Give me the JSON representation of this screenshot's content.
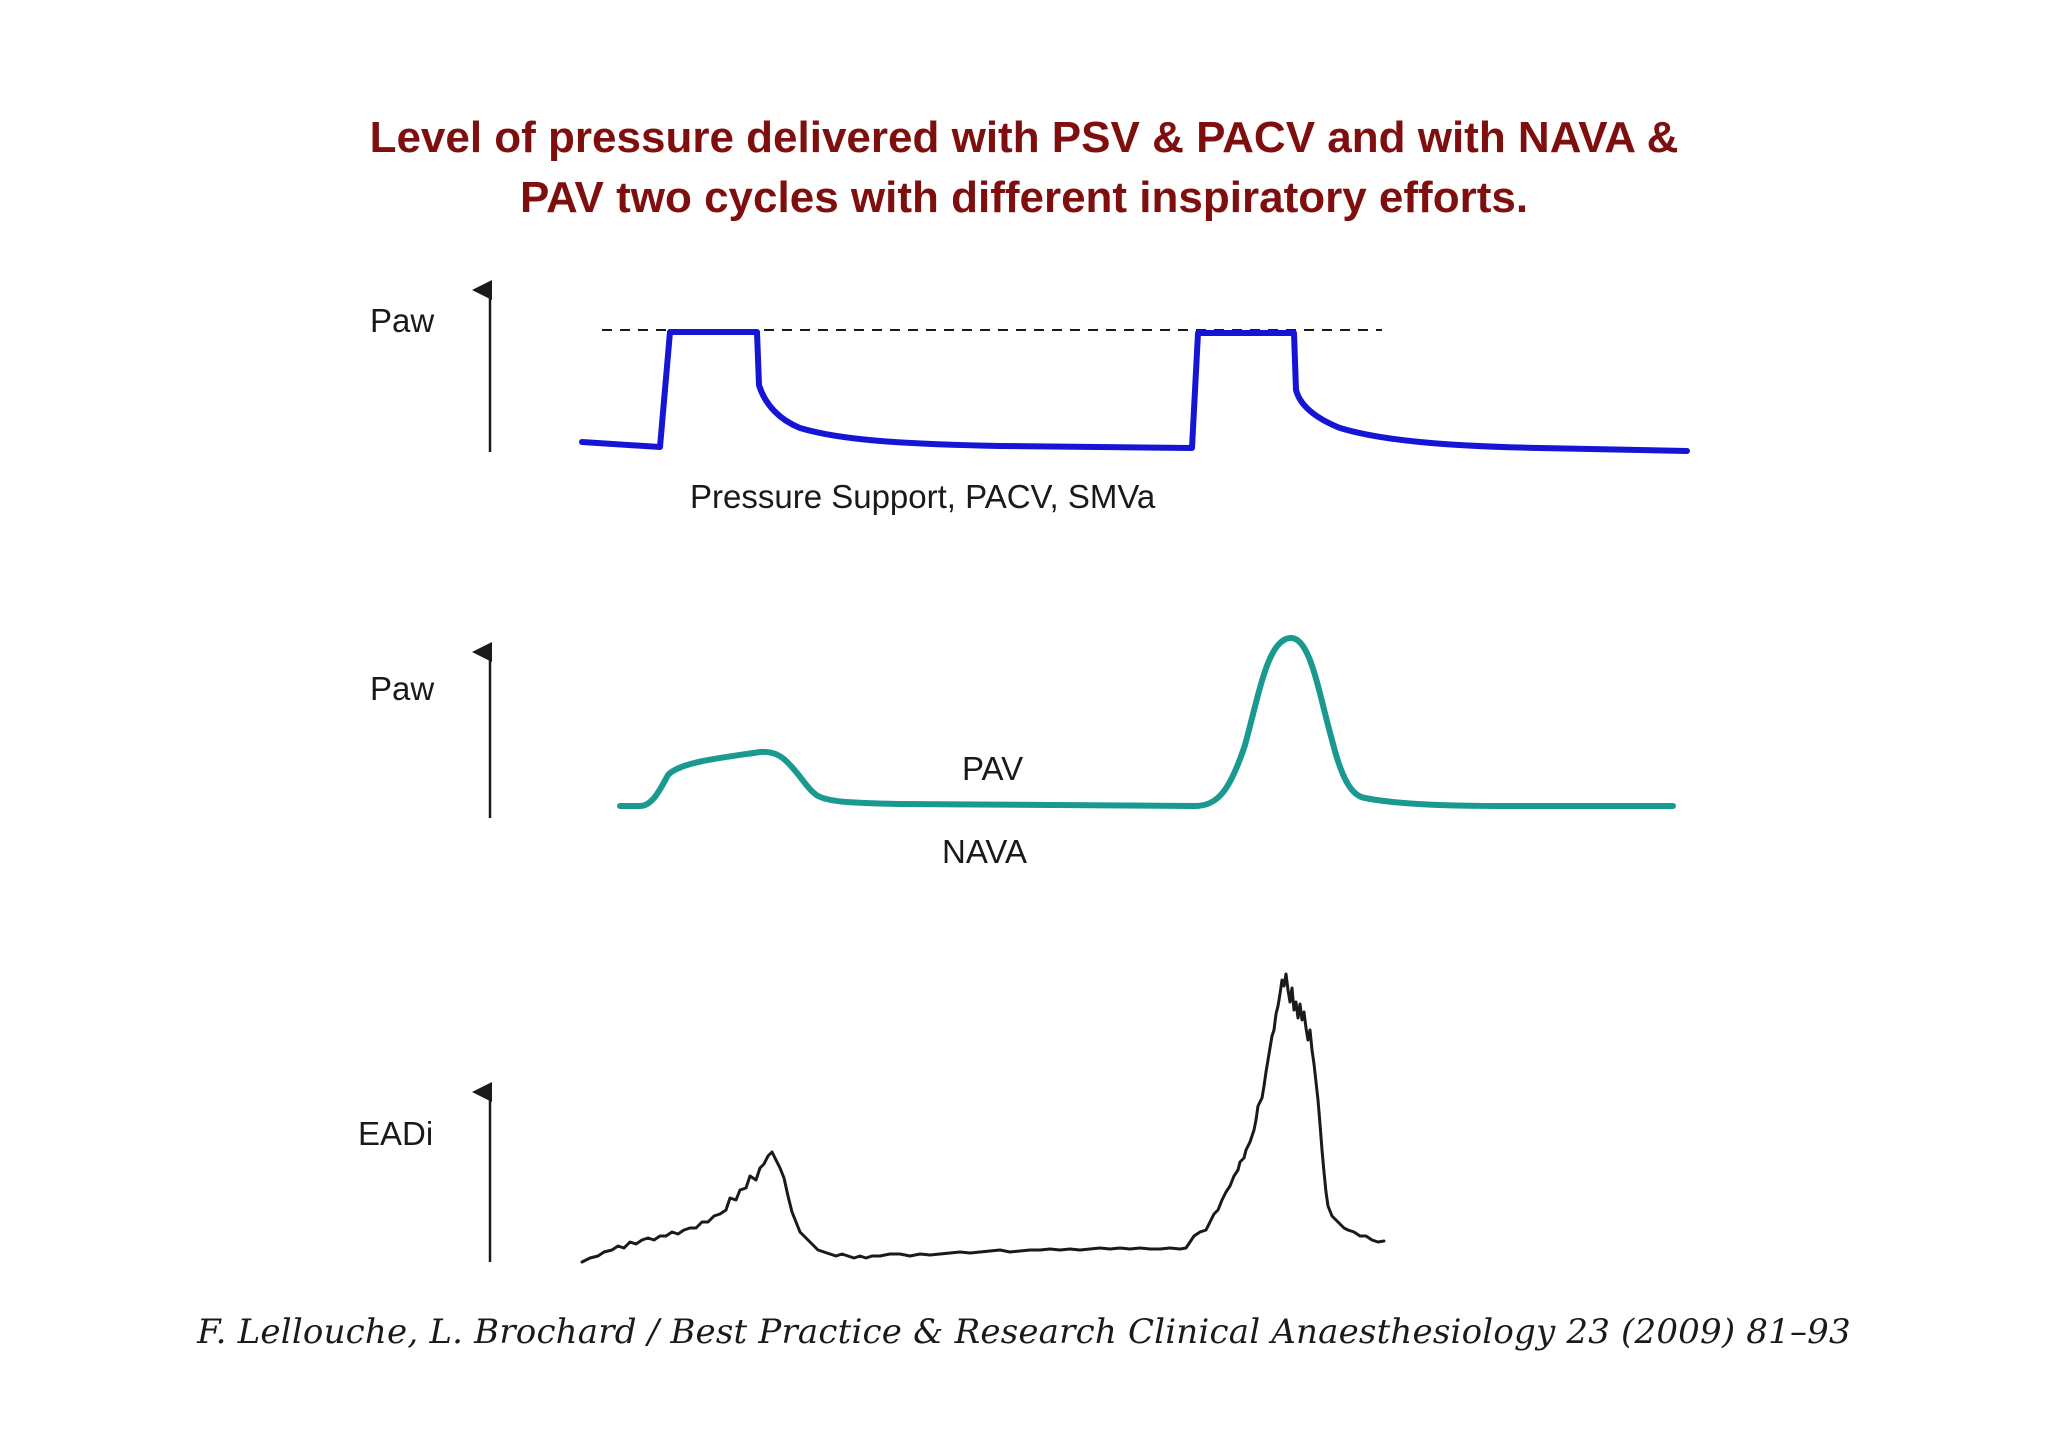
{
  "title": {
    "line1": "Level of pressure delivered with PSV & PACV and with NAVA &",
    "line2": "PAV two cycles with different inspiratory efforts."
  },
  "panels": [
    {
      "axis_label": "Paw",
      "curve_label": "Pressure Support, PACV, SMVa",
      "color": "#1515d6"
    },
    {
      "axis_label": "Paw",
      "curve_label_top": "PAV",
      "curve_label_bottom": "NAVA",
      "color": "#1a9990"
    },
    {
      "axis_label": "EADi",
      "color": "#1a1a1a"
    }
  ],
  "citation": "F. Lellouche, L. Brochard / Best Practice & Research Clinical Anaesthesiology 23 (2009) 81–93"
}
